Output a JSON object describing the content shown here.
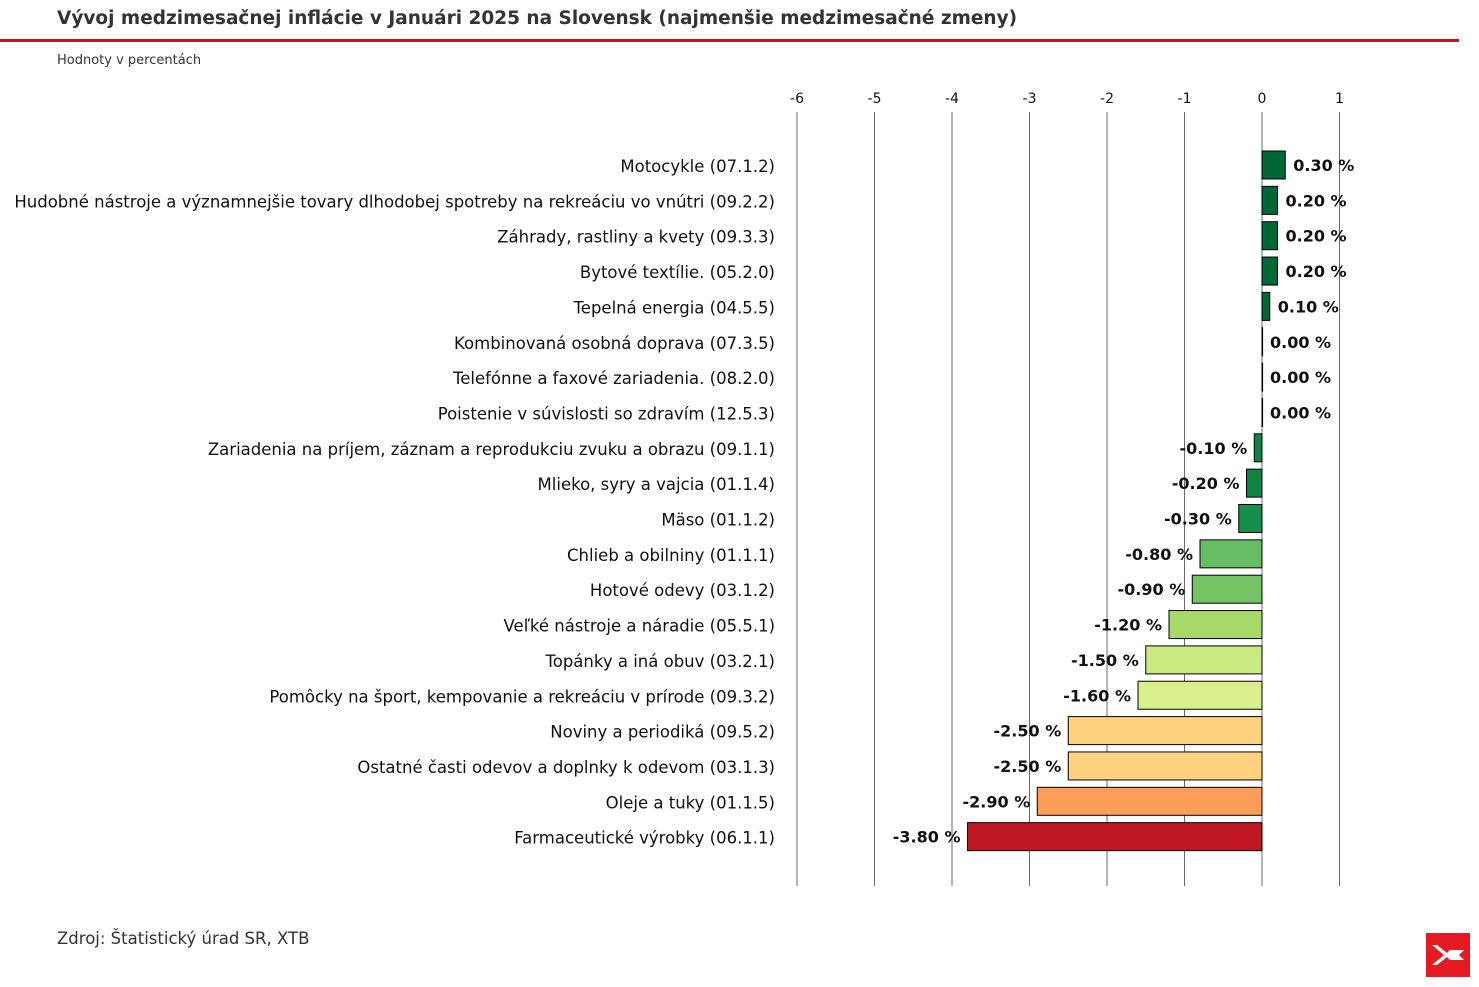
{
  "title": "Vývoj medzimesačnej inflácie v Januári 2025 na Slovensk (najmenšie medzimesačné zmeny)",
  "subtitle": "Hodnoty v percentách",
  "source": "Zdroj: Štatistický úrad SR, XTB",
  "logo": {
    "icon": "xtb-logo-icon",
    "color": "#e51b24"
  },
  "chart_data": {
    "type": "bar",
    "orientation": "horizontal",
    "xlim": [
      -6.45,
      1.45
    ],
    "x_ticks": [
      -6,
      -5,
      -4,
      -3,
      -2,
      -1,
      0,
      1
    ],
    "x_tick_position": "top",
    "grid": "vertical",
    "value_suffix": " %",
    "categories": [
      "Motocykle (07.1.2)",
      "Hudobné nástroje a významnejšie tovary dlhodobej spotreby na rekreáciu vo vnútri (09.2.2)",
      "Záhrady, rastliny a kvety (09.3.3)",
      "Bytové textílie. (05.2.0)",
      "Tepelná energia (04.5.5)",
      "Kombinovaná osobná doprava (07.3.5)",
      "Telefónne a faxové zariadenia. (08.2.0)",
      "Poistenie v súvislosti so zdravím (12.5.3)",
      "Zariadenia na príjem, záznam a reprodukciu zvuku a obrazu (09.1.1)",
      "Mlieko, syry a vajcia (01.1.4)",
      "Mäso (01.1.2)",
      "Chlieb a obilniny (01.1.1)",
      "Hotové odevy (03.1.2)",
      "Veľké nástroje a náradie (05.5.1)",
      "Topánky a iná obuv (03.2.1)",
      "Pomôcky na šport, kempovanie a rekreáciu v prírode (09.3.2)",
      "Noviny a periodiká (09.5.2)",
      "Ostatné časti odevov a doplnky k odevom (03.1.3)",
      "Oleje a tuky (01.1.5)",
      "Farmaceutické výrobky (06.1.1)"
    ],
    "values": [
      0.3,
      0.2,
      0.2,
      0.2,
      0.1,
      0.0,
      0.0,
      0.0,
      -0.1,
      -0.2,
      -0.3,
      -0.8,
      -0.9,
      -1.2,
      -1.5,
      -1.6,
      -2.5,
      -2.5,
      -2.9,
      -3.8
    ],
    "value_labels": [
      "0.30 %",
      "0.20 %",
      "0.20 %",
      "0.20 %",
      "0.10 %",
      "0.00 %",
      "0.00 %",
      "0.00 %",
      "-0.10 %",
      "-0.20 %",
      "-0.30 %",
      "-0.80 %",
      "-0.90 %",
      "-1.20 %",
      "-1.50 %",
      "-1.60 %",
      "-2.50 %",
      "-2.50 %",
      "-2.90 %",
      "-3.80 %"
    ],
    "colors": [
      "#006837",
      "#006837",
      "#006837",
      "#006837",
      "#006837",
      "#006837",
      "#006837",
      "#006837",
      "#0f8446",
      "#0f8446",
      "#15904a",
      "#66bd63",
      "#74c464",
      "#a6d96a",
      "#cbe982",
      "#d9ef8b",
      "#fed27f",
      "#fed27f",
      "#fc9d59",
      "#be1623"
    ]
  }
}
